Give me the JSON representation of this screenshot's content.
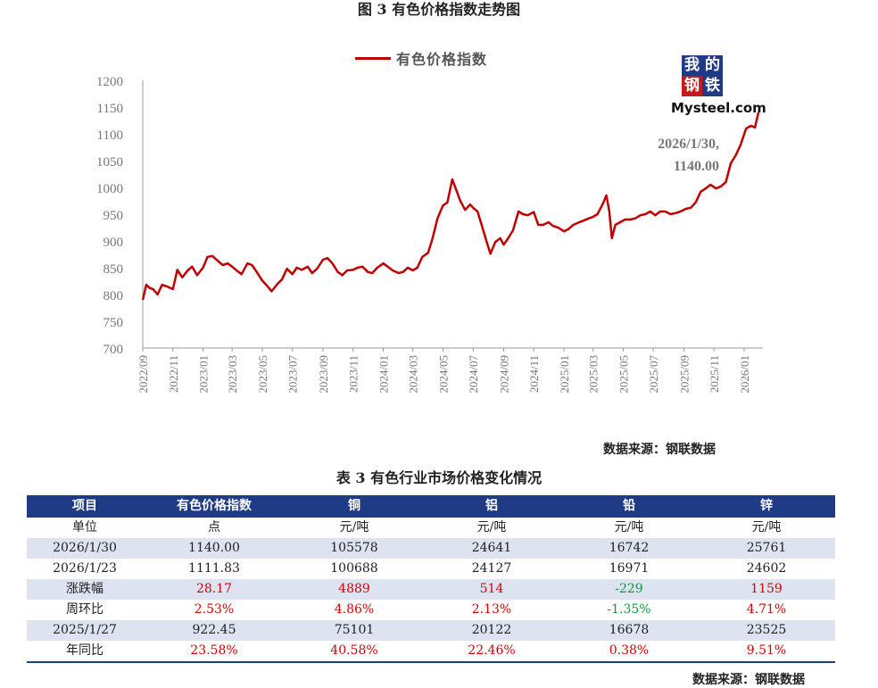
{
  "figure": {
    "title": "图 3  有色价格指数走势图",
    "source": "数据来源：钢联数据",
    "logo": {
      "tiles": [
        "我",
        "的",
        "钢",
        "铁"
      ],
      "text": "Mysteel.com"
    }
  },
  "chart_data": {
    "type": "line",
    "legend_placement": "top-center",
    "grid": false,
    "ylim": [
      700,
      1200
    ],
    "yticks": [
      "1200",
      "1150",
      "1100",
      "1050",
      "1000",
      "950",
      "900",
      "850",
      "800",
      "750",
      "700"
    ],
    "xlim": [
      "2022-09-01",
      "2026-02-08"
    ],
    "xticks": [
      "2022/09",
      "2022/11",
      "2023/01",
      "2023/03",
      "2023/05",
      "2023/07",
      "2023/09",
      "2023/11",
      "2024/01",
      "2024/03",
      "2024/05",
      "2024/07",
      "2024/09",
      "2024/11",
      "2025/01",
      "2025/03",
      "2025/05",
      "2025/07",
      "2025/09",
      "2025/11",
      "2026/01"
    ],
    "annotation": {
      "lines": [
        "2026/1/30,",
        "1140.00"
      ],
      "date": "2026-01-30",
      "value": 1140.0
    },
    "series": [
      {
        "name": "有色价格指数",
        "color": "#c00000",
        "points": [
          [
            "2022-09-01",
            790
          ],
          [
            "2022-09-08",
            818
          ],
          [
            "2022-09-15",
            812
          ],
          [
            "2022-09-22",
            810
          ],
          [
            "2022-10-01",
            800
          ],
          [
            "2022-10-10",
            818
          ],
          [
            "2022-10-20",
            815
          ],
          [
            "2022-11-01",
            810
          ],
          [
            "2022-11-10",
            846
          ],
          [
            "2022-11-20",
            832
          ],
          [
            "2022-12-01",
            845
          ],
          [
            "2022-12-10",
            852
          ],
          [
            "2022-12-20",
            836
          ],
          [
            "2023-01-01",
            850
          ],
          [
            "2023-01-10",
            870
          ],
          [
            "2023-01-20",
            872
          ],
          [
            "2023-02-01",
            862
          ],
          [
            "2023-02-10",
            855
          ],
          [
            "2023-02-20",
            858
          ],
          [
            "2023-03-01",
            852
          ],
          [
            "2023-03-10",
            845
          ],
          [
            "2023-03-20",
            838
          ],
          [
            "2023-04-01",
            858
          ],
          [
            "2023-04-10",
            855
          ],
          [
            "2023-04-20",
            842
          ],
          [
            "2023-05-01",
            826
          ],
          [
            "2023-05-10",
            817
          ],
          [
            "2023-05-20",
            806
          ],
          [
            "2023-06-01",
            820
          ],
          [
            "2023-06-10",
            828
          ],
          [
            "2023-06-20",
            848
          ],
          [
            "2023-07-01",
            838
          ],
          [
            "2023-07-10",
            850
          ],
          [
            "2023-07-20",
            846
          ],
          [
            "2023-08-01",
            852
          ],
          [
            "2023-08-10",
            840
          ],
          [
            "2023-08-20",
            848
          ],
          [
            "2023-09-01",
            865
          ],
          [
            "2023-09-10",
            868
          ],
          [
            "2023-09-20",
            858
          ],
          [
            "2023-10-01",
            842
          ],
          [
            "2023-10-10",
            836
          ],
          [
            "2023-10-20",
            845
          ],
          [
            "2023-11-01",
            846
          ],
          [
            "2023-11-10",
            850
          ],
          [
            "2023-11-20",
            852
          ],
          [
            "2023-12-01",
            842
          ],
          [
            "2023-12-10",
            840
          ],
          [
            "2023-12-20",
            850
          ],
          [
            "2024-01-01",
            858
          ],
          [
            "2024-01-10",
            852
          ],
          [
            "2024-01-20",
            845
          ],
          [
            "2024-02-01",
            840
          ],
          [
            "2024-02-10",
            842
          ],
          [
            "2024-02-20",
            850
          ],
          [
            "2024-03-01",
            845
          ],
          [
            "2024-03-10",
            850
          ],
          [
            "2024-03-20",
            870
          ],
          [
            "2024-04-01",
            878
          ],
          [
            "2024-04-10",
            905
          ],
          [
            "2024-04-20",
            942
          ],
          [
            "2024-05-01",
            966
          ],
          [
            "2024-05-10",
            972
          ],
          [
            "2024-05-20",
            1015
          ],
          [
            "2024-05-28",
            995
          ],
          [
            "2024-06-05",
            975
          ],
          [
            "2024-06-15",
            958
          ],
          [
            "2024-06-25",
            968
          ],
          [
            "2024-07-01",
            962
          ],
          [
            "2024-07-10",
            955
          ],
          [
            "2024-07-20",
            925
          ],
          [
            "2024-07-28",
            900
          ],
          [
            "2024-08-05",
            876
          ],
          [
            "2024-08-15",
            898
          ],
          [
            "2024-08-25",
            905
          ],
          [
            "2024-09-01",
            893
          ],
          [
            "2024-09-10",
            905
          ],
          [
            "2024-09-20",
            920
          ],
          [
            "2024-10-01",
            955
          ],
          [
            "2024-10-10",
            950
          ],
          [
            "2024-10-20",
            948
          ],
          [
            "2024-11-01",
            954
          ],
          [
            "2024-11-10",
            930
          ],
          [
            "2024-11-20",
            930
          ],
          [
            "2024-12-01",
            935
          ],
          [
            "2024-12-10",
            928
          ],
          [
            "2024-12-20",
            925
          ],
          [
            "2025-01-01",
            918
          ],
          [
            "2025-01-10",
            922
          ],
          [
            "2025-01-20",
            930
          ],
          [
            "2025-02-01",
            935
          ],
          [
            "2025-02-10",
            938
          ],
          [
            "2025-02-20",
            942
          ],
          [
            "2025-03-01",
            945
          ],
          [
            "2025-03-10",
            950
          ],
          [
            "2025-03-20",
            968
          ],
          [
            "2025-03-28",
            985
          ],
          [
            "2025-04-03",
            955
          ],
          [
            "2025-04-08",
            905
          ],
          [
            "2025-04-15",
            930
          ],
          [
            "2025-04-25",
            935
          ],
          [
            "2025-05-05",
            940
          ],
          [
            "2025-05-15",
            940
          ],
          [
            "2025-05-25",
            942
          ],
          [
            "2025-06-05",
            948
          ],
          [
            "2025-06-15",
            950
          ],
          [
            "2025-06-25",
            955
          ],
          [
            "2025-07-05",
            948
          ],
          [
            "2025-07-15",
            955
          ],
          [
            "2025-07-25",
            955
          ],
          [
            "2025-08-05",
            950
          ],
          [
            "2025-08-15",
            952
          ],
          [
            "2025-08-25",
            955
          ],
          [
            "2025-09-05",
            960
          ],
          [
            "2025-09-15",
            962
          ],
          [
            "2025-09-25",
            972
          ],
          [
            "2025-10-05",
            992
          ],
          [
            "2025-10-15",
            998
          ],
          [
            "2025-10-25",
            1005
          ],
          [
            "2025-11-05",
            998
          ],
          [
            "2025-11-15",
            1002
          ],
          [
            "2025-11-25",
            1010
          ],
          [
            "2025-12-05",
            1045
          ],
          [
            "2025-12-15",
            1060
          ],
          [
            "2025-12-25",
            1080
          ],
          [
            "2026-01-05",
            1110
          ],
          [
            "2026-01-15",
            1115
          ],
          [
            "2026-01-23",
            1111.83
          ],
          [
            "2026-01-30",
            1140
          ]
        ]
      }
    ]
  },
  "table": {
    "title": "表 3 有色行业市场价格变化情况",
    "source": "数据来源：钢联数据",
    "header": [
      "项目",
      "有色价格指数",
      "铜",
      "铝",
      "铅",
      "锌"
    ],
    "rows": [
      {
        "cells": [
          "单位",
          "点",
          "元/吨",
          "元/吨",
          "元/吨",
          "元/吨"
        ],
        "colors": [
          "",
          "",
          "",
          "",
          "",
          ""
        ]
      },
      {
        "cells": [
          "2026/1/30",
          "1140.00",
          "105578",
          "24641",
          "16742",
          "25761"
        ],
        "colors": [
          "",
          "",
          "",
          "",
          "",
          ""
        ]
      },
      {
        "cells": [
          "2026/1/23",
          "1111.83",
          "100688",
          "24127",
          "16971",
          "24602"
        ],
        "colors": [
          "",
          "",
          "",
          "",
          "",
          ""
        ]
      },
      {
        "cells": [
          "涨跌幅",
          "28.17",
          "4889",
          "514",
          "-229",
          "1159"
        ],
        "colors": [
          "",
          "red",
          "red",
          "red",
          "green",
          "red"
        ]
      },
      {
        "cells": [
          "周环比",
          "2.53%",
          "4.86%",
          "2.13%",
          "-1.35%",
          "4.71%"
        ],
        "colors": [
          "",
          "red",
          "red",
          "red",
          "green",
          "red"
        ]
      },
      {
        "cells": [
          "2025/1/27",
          "922.45",
          "75101",
          "20122",
          "16678",
          "23525"
        ],
        "colors": [
          "",
          "",
          "",
          "",
          "",
          ""
        ]
      },
      {
        "cells": [
          "年同比",
          "23.58%",
          "40.58%",
          "22.46%",
          "0.38%",
          "9.51%"
        ],
        "colors": [
          "",
          "red",
          "red",
          "red",
          "red",
          "red"
        ]
      }
    ]
  }
}
